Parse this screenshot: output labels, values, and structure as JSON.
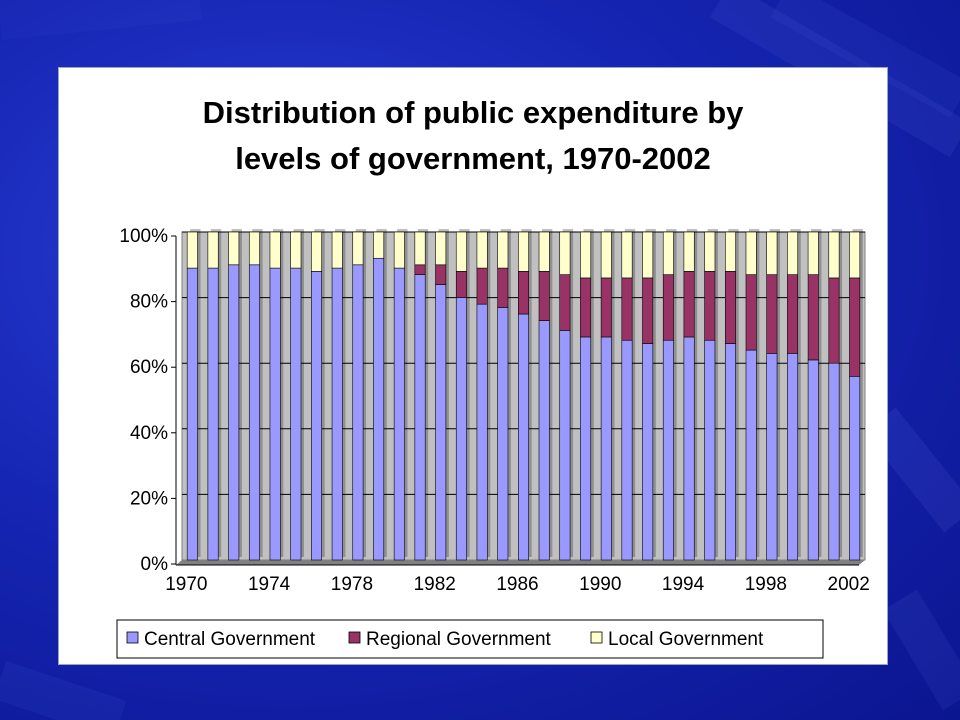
{
  "slide": {
    "background": "#1626b4"
  },
  "chart_data": {
    "type": "bar",
    "stacked": true,
    "percent_stacked": true,
    "title_lines": [
      "Distribution of public expenditure by",
      "levels of government, 1970-2002"
    ],
    "xlabel": "",
    "ylabel": "",
    "ylim": [
      0,
      100
    ],
    "y_ticks": [
      "0%",
      "20%",
      "40%",
      "60%",
      "80%",
      "100%"
    ],
    "x_tick_labels": [
      "1970",
      "1974",
      "1978",
      "1982",
      "1986",
      "1990",
      "1994",
      "1998",
      "2002"
    ],
    "categories": [
      "1970",
      "1971",
      "1972",
      "1973",
      "1974",
      "1975",
      "1976",
      "1977",
      "1978",
      "1979",
      "1980",
      "1981",
      "1982",
      "1983",
      "1984",
      "1985",
      "1986",
      "1987",
      "1988",
      "1989",
      "1990",
      "1991",
      "1992",
      "1993",
      "1994",
      "1995",
      "1996",
      "1997",
      "1998",
      "1999",
      "2000",
      "2001",
      "2002"
    ],
    "series": [
      {
        "name": "Central Government",
        "color": "#9999ff",
        "values": [
          89,
          89,
          90,
          90,
          89,
          89,
          88,
          89,
          90,
          92,
          89,
          87,
          84,
          80,
          78,
          77,
          75,
          73,
          70,
          68,
          68,
          67,
          66,
          67,
          68,
          67,
          66,
          64,
          63,
          63,
          61,
          60,
          56
        ]
      },
      {
        "name": "Regional Government",
        "color": "#993366",
        "values": [
          0,
          0,
          0,
          0,
          0,
          0,
          0,
          0,
          0,
          0,
          0,
          3,
          6,
          8,
          11,
          12,
          13,
          15,
          17,
          18,
          18,
          19,
          20,
          20,
          20,
          21,
          22,
          23,
          24,
          24,
          26,
          26,
          30
        ]
      },
      {
        "name": "Local Government",
        "color": "#ffffcc",
        "values": [
          11,
          11,
          10,
          10,
          11,
          11,
          12,
          11,
          10,
          8,
          11,
          10,
          10,
          12,
          11,
          11,
          12,
          12,
          13,
          14,
          14,
          14,
          14,
          13,
          12,
          12,
          12,
          13,
          13,
          13,
          13,
          14,
          14
        ]
      }
    ],
    "grid": true,
    "legend_position": "bottom",
    "plot_background": "#c0c0c0"
  }
}
